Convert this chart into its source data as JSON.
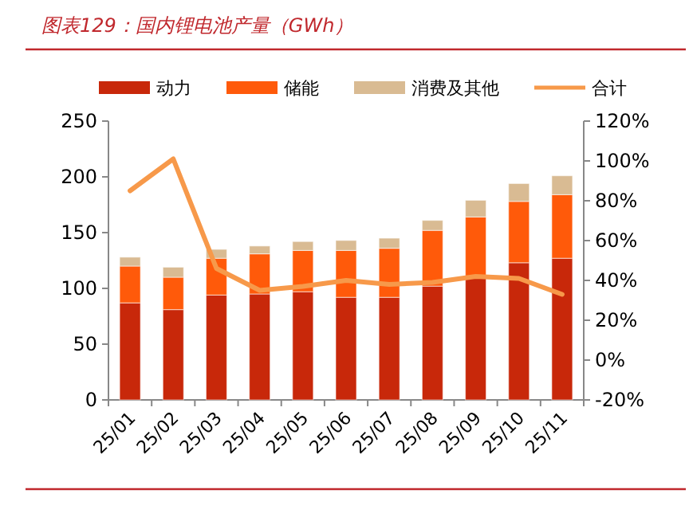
{
  "chart_data": {
    "type": "bar",
    "title": "图表129：国内锂电池产量（GWh）",
    "categories": [
      "25/01",
      "25/02",
      "25/03",
      "25/04",
      "25/05",
      "25/06",
      "25/07",
      "25/08",
      "25/09",
      "25/10",
      "25/11"
    ],
    "stacked": true,
    "legend": "top",
    "series": [
      {
        "name": "动力",
        "color": "#c8280a",
        "values": [
          87,
          81,
          94,
          95,
          97,
          92,
          92,
          102,
          109,
          123,
          127
        ]
      },
      {
        "name": "储能",
        "color": "#ff5a0a",
        "values": [
          33,
          29,
          33,
          36,
          37,
          42,
          44,
          50,
          55,
          55,
          57
        ]
      },
      {
        "name": "消费及其他",
        "color": "#d9bb93",
        "values": [
          8,
          9,
          8,
          7,
          8,
          9,
          9,
          9,
          15,
          16,
          17
        ]
      },
      {
        "name": "合计",
        "type": "line",
        "axis": "y2",
        "color": "#f7994a",
        "values": [
          85,
          101,
          46,
          35,
          37,
          40,
          38,
          39,
          42,
          41,
          33
        ]
      }
    ],
    "ylim": [
      0,
      250
    ],
    "yticks": [
      0,
      50,
      100,
      150,
      200,
      250
    ],
    "y2lim": [
      -20,
      120
    ],
    "y2ticks": [
      {
        "value": -20,
        "label": "-20%"
      },
      {
        "value": 0,
        "label": "0%"
      },
      {
        "value": 20,
        "label": "20%"
      },
      {
        "value": 40,
        "label": "40%"
      },
      {
        "value": 60,
        "label": "60%"
      },
      {
        "value": 80,
        "label": "80%"
      },
      {
        "value": 100,
        "label": "100%"
      },
      {
        "value": 120,
        "label": "120%"
      }
    ]
  }
}
